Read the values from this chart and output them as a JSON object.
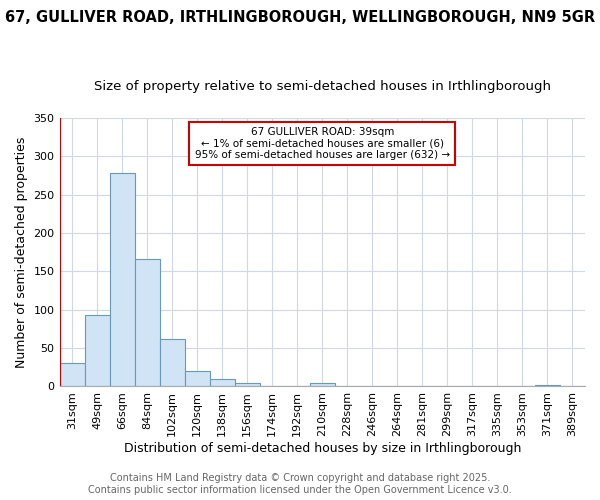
{
  "title": "67, GULLIVER ROAD, IRTHLINGBOROUGH, WELLINGBOROUGH, NN9 5GR",
  "subtitle": "Size of property relative to semi-detached houses in Irthlingborough",
  "xlabel": "Distribution of semi-detached houses by size in Irthlingborough",
  "ylabel": "Number of semi-detached properties",
  "categories": [
    "31sqm",
    "49sqm",
    "66sqm",
    "84sqm",
    "102sqm",
    "120sqm",
    "138sqm",
    "156sqm",
    "174sqm",
    "192sqm",
    "210sqm",
    "228sqm",
    "246sqm",
    "264sqm",
    "281sqm",
    "299sqm",
    "317sqm",
    "335sqm",
    "353sqm",
    "371sqm",
    "389sqm"
  ],
  "values": [
    30,
    93,
    278,
    166,
    62,
    20,
    10,
    5,
    0,
    0,
    4,
    0,
    0,
    0,
    0,
    0,
    0,
    0,
    0,
    2,
    0
  ],
  "bar_color": "#d0e4f5",
  "bar_edge_color": "#6699bb",
  "property_line_color": "#cc0000",
  "annotation_text": "67 GULLIVER ROAD: 39sqm\n← 1% of semi-detached houses are smaller (6)\n95% of semi-detached houses are larger (632) →",
  "annotation_box_color": "#cc0000",
  "ylim": [
    0,
    350
  ],
  "yticks": [
    0,
    50,
    100,
    150,
    200,
    250,
    300,
    350
  ],
  "footer_line1": "Contains HM Land Registry data © Crown copyright and database right 2025.",
  "footer_line2": "Contains public sector information licensed under the Open Government Licence v3.0.",
  "background_color": "#ffffff",
  "grid_color": "#d0d8e8",
  "title_fontsize": 10.5,
  "subtitle_fontsize": 9.5,
  "axis_label_fontsize": 9,
  "tick_fontsize": 8,
  "footer_fontsize": 7
}
